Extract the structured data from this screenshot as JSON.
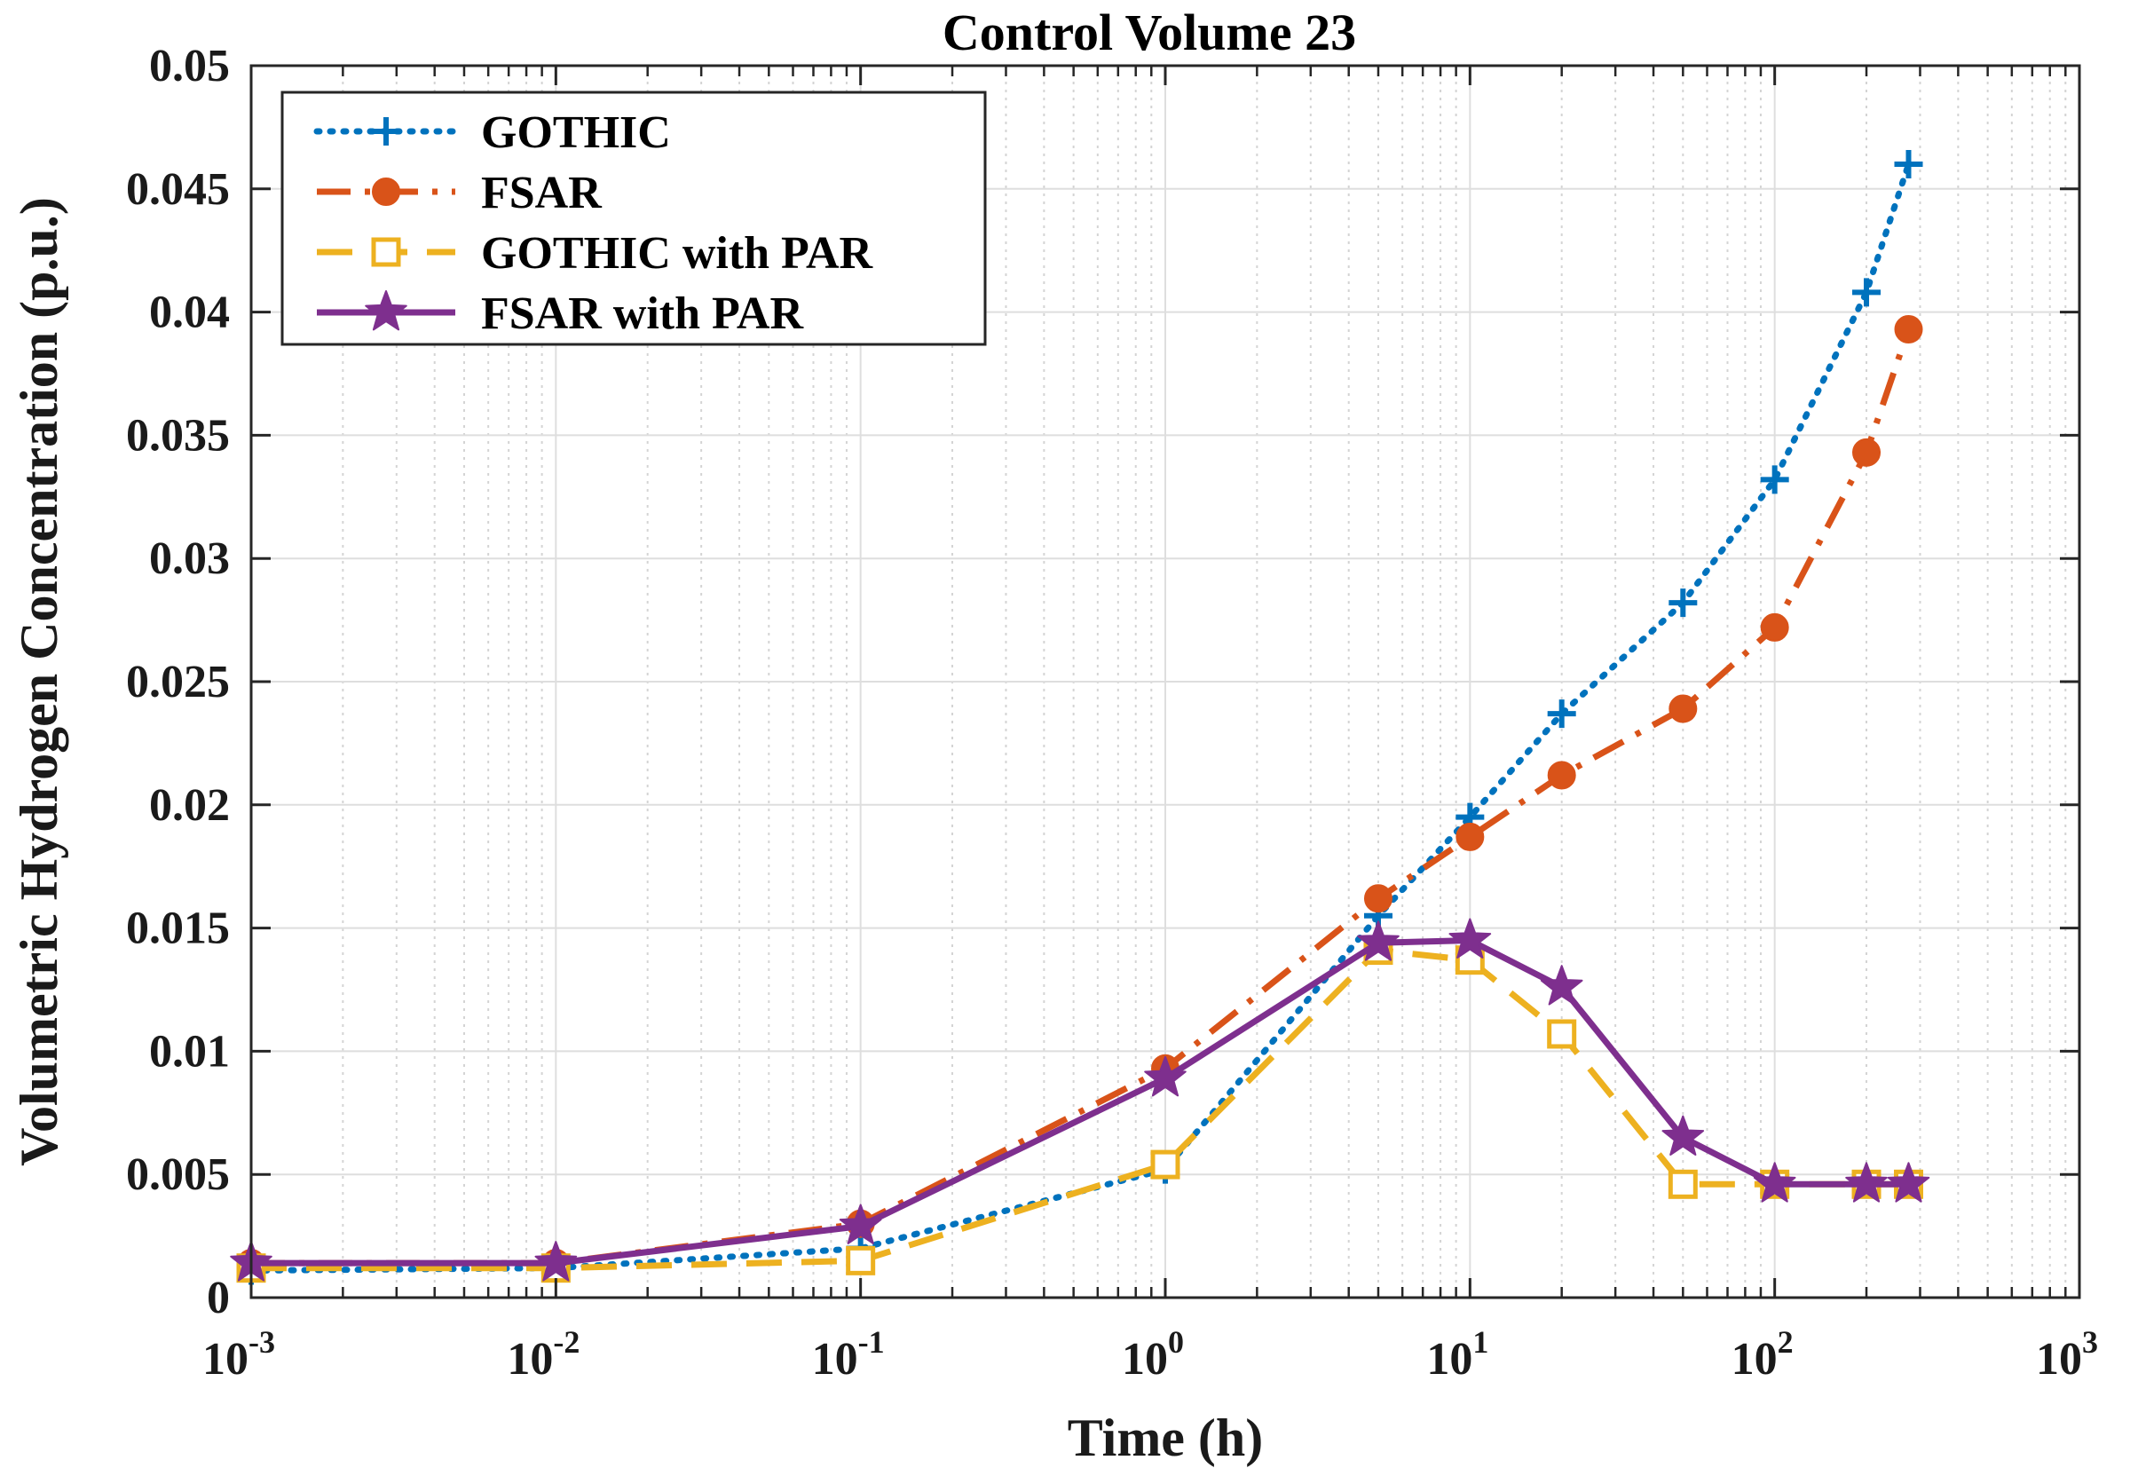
{
  "chart_data": {
    "type": "line",
    "title": "Control Volume 23",
    "xlabel": "Time (h)",
    "ylabel": "Volumetric Hydrogen Concentration (p.u.)",
    "xscale": "log",
    "xlim": [
      0.001,
      1000
    ],
    "ylim": [
      0,
      0.05
    ],
    "x_ticks": [
      {
        "base": "10",
        "exp": "-3",
        "value": 0.001
      },
      {
        "base": "10",
        "exp": "-2",
        "value": 0.01
      },
      {
        "base": "10",
        "exp": "-1",
        "value": 0.1
      },
      {
        "base": "10",
        "exp": "0",
        "value": 1
      },
      {
        "base": "10",
        "exp": "1",
        "value": 10
      },
      {
        "base": "10",
        "exp": "2",
        "value": 100
      },
      {
        "base": "10",
        "exp": "3",
        "value": 1000
      }
    ],
    "y_ticks": [
      {
        "label": "0",
        "value": 0
      },
      {
        "label": "0.005",
        "value": 0.005
      },
      {
        "label": "0.01",
        "value": 0.01
      },
      {
        "label": "0.015",
        "value": 0.015
      },
      {
        "label": "0.02",
        "value": 0.02
      },
      {
        "label": "0.025",
        "value": 0.025
      },
      {
        "label": "0.03",
        "value": 0.03
      },
      {
        "label": "0.035",
        "value": 0.035
      },
      {
        "label": "0.04",
        "value": 0.04
      },
      {
        "label": "0.045",
        "value": 0.045
      },
      {
        "label": "0.05",
        "value": 0.05
      }
    ],
    "grid": true,
    "legend_position": "top-left",
    "series": [
      {
        "name": "GOTHIC",
        "color": "#0072bd",
        "line_style": "dotted",
        "marker": "plus",
        "x": [
          0.001,
          0.01,
          0.1,
          1,
          5,
          10,
          20,
          50,
          100,
          200,
          275
        ],
        "y": [
          0.0011,
          0.0012,
          0.002,
          0.0052,
          0.0155,
          0.0195,
          0.0237,
          0.0282,
          0.0332,
          0.0408,
          0.046
        ]
      },
      {
        "name": "FSAR",
        "color": "#d95319",
        "line_style": "dashdot",
        "marker": "circle",
        "x": [
          0.001,
          0.01,
          0.1,
          1,
          5,
          10,
          20,
          50,
          100,
          200,
          275
        ],
        "y": [
          0.0014,
          0.0014,
          0.003,
          0.0093,
          0.0162,
          0.0187,
          0.0212,
          0.0239,
          0.0272,
          0.0343,
          0.0393
        ]
      },
      {
        "name": "GOTHIC with PAR",
        "color": "#edb120",
        "line_style": "dashed",
        "marker": "square",
        "x": [
          0.001,
          0.01,
          0.1,
          1,
          5,
          10,
          20,
          50,
          100,
          200,
          275
        ],
        "y": [
          0.0012,
          0.0012,
          0.0015,
          0.0054,
          0.0141,
          0.0137,
          0.0107,
          0.0046,
          0.0046,
          0.0046,
          0.0046
        ]
      },
      {
        "name": "FSAR with PAR",
        "color": "#7e2f8e",
        "line_style": "solid",
        "marker": "star",
        "x": [
          0.001,
          0.01,
          0.1,
          1,
          5,
          10,
          20,
          50,
          100,
          200,
          275
        ],
        "y": [
          0.0014,
          0.0014,
          0.0029,
          0.0089,
          0.0144,
          0.0145,
          0.0126,
          0.0065,
          0.0046,
          0.0046,
          0.0046
        ]
      }
    ]
  }
}
